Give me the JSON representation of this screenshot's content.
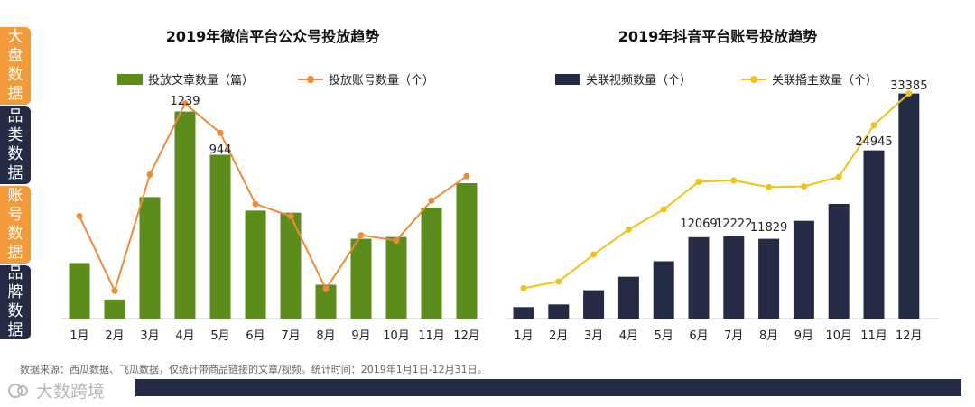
{
  "sidebar": {
    "tabs": [
      {
        "label": "大盘数据",
        "active": true
      },
      {
        "label": "品类数据",
        "active": false
      },
      {
        "label": "账号数据",
        "active": true
      },
      {
        "label": "品牌数据",
        "active": false
      }
    ]
  },
  "colors": {
    "green": "#5b8c1c",
    "orange": "#ed8b3a",
    "navy": "#262b45",
    "yellow": "#f2c21b",
    "tab_orange": "#f39a3b"
  },
  "chart_data": [
    {
      "type": "bar",
      "title": "2019年微信平台公众号投放趋势",
      "categories": [
        "1月",
        "2月",
        "3月",
        "4月",
        "5月",
        "6月",
        "7月",
        "8月",
        "9月",
        "10月",
        "11月",
        "12月"
      ],
      "series": [
        {
          "name": "投放文章数量（篇）",
          "type": "bar",
          "values": [
            320,
            110,
            700,
            1193,
            944,
            622,
            610,
            195,
            460,
            470,
            640,
            780
          ],
          "ylim": [
            0,
            1300
          ]
        },
        {
          "name": "投放账号数量（个）",
          "type": "line",
          "values": [
            590,
            160,
            830,
            1239,
            1070,
            660,
            590,
            170,
            480,
            450,
            680,
            820
          ],
          "ylim": [
            0,
            1300
          ]
        }
      ],
      "data_labels": [
        {
          "index": 3,
          "text": "1239"
        },
        {
          "index": 4,
          "text": "944"
        }
      ]
    },
    {
      "type": "bar",
      "title": "2019年抖音平台账号投放趋势",
      "categories": [
        "1月",
        "2月",
        "3月",
        "4月",
        "5月",
        "6月",
        "7月",
        "8月",
        "9月",
        "10月",
        "11月",
        "12月"
      ],
      "series": [
        {
          "name": "关联视频数量（个）",
          "type": "bar",
          "values": [
            1700,
            2100,
            4200,
            6200,
            8500,
            12069,
            12222,
            11829,
            14500,
            17000,
            24945,
            33385
          ],
          "ylim": [
            0,
            34000
          ]
        },
        {
          "name": "关联播主数量（个）",
          "type": "line",
          "values": [
            4500,
            5500,
            9500,
            13200,
            16200,
            20300,
            20500,
            19500,
            19600,
            21000,
            28700,
            33400
          ],
          "ylim": [
            0,
            34000
          ]
        }
      ],
      "data_labels": [
        {
          "index": 5,
          "text": "12069"
        },
        {
          "index": 6,
          "text": "12222"
        },
        {
          "index": 7,
          "text": "11829"
        },
        {
          "index": 10,
          "text": "24945"
        },
        {
          "index": 11,
          "text": "33385"
        }
      ]
    }
  ],
  "source": {
    "text": "数据来源：西瓜数据、飞瓜数据，仅统计带商品链接的文章/视频。统计时间：2019年1月1日-12月31日。"
  },
  "brand": {
    "name": "大数跨境",
    "icon": "logo-icon"
  }
}
